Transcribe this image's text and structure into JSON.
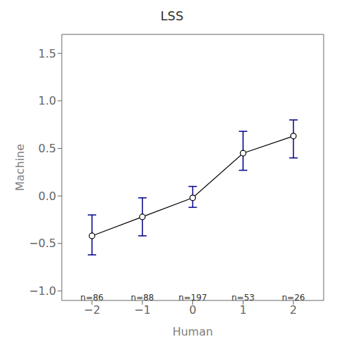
{
  "chart_data": {
    "type": "line",
    "title": "LSS",
    "x_label": "Human",
    "y_label": "Machine",
    "x": [
      -2,
      -1,
      0,
      1,
      2
    ],
    "values": [
      -0.42,
      -0.22,
      -0.02,
      0.45,
      0.63
    ],
    "color": "#000000",
    "marker": "circle",
    "error_bars": {
      "upper": [
        -0.2,
        -0.02,
        0.1,
        0.68,
        0.8
      ],
      "lower": [
        -0.62,
        -0.42,
        -0.12,
        0.27,
        0.4
      ],
      "color": "#00008B"
    },
    "annotations": [
      {
        "x": -2,
        "y": -1.02,
        "text": "n=86"
      },
      {
        "x": -1,
        "y": -1.02,
        "text": "n=88"
      },
      {
        "x": 0,
        "y": -1.02,
        "text": "n=197"
      },
      {
        "x": 1,
        "y": -1.02,
        "text": "n=53"
      },
      {
        "x": 2,
        "y": -1.02,
        "text": "n=26"
      }
    ],
    "xlim": [
      -2.6,
      2.6
    ],
    "ylim": [
      -1.1,
      1.7
    ],
    "xticks": [
      {
        "value": -2,
        "label": "−2"
      },
      {
        "value": -1,
        "label": "−1"
      },
      0,
      1,
      2
    ],
    "yticks": [
      {
        "value": -1.0,
        "label": "−1.0"
      },
      {
        "value": -0.5,
        "label": "−0.5"
      },
      {
        "value": 0.0,
        "label": "0.0"
      },
      0.5,
      {
        "value": 1.0,
        "label": "1.0"
      },
      1.5
    ],
    "grid": false
  }
}
